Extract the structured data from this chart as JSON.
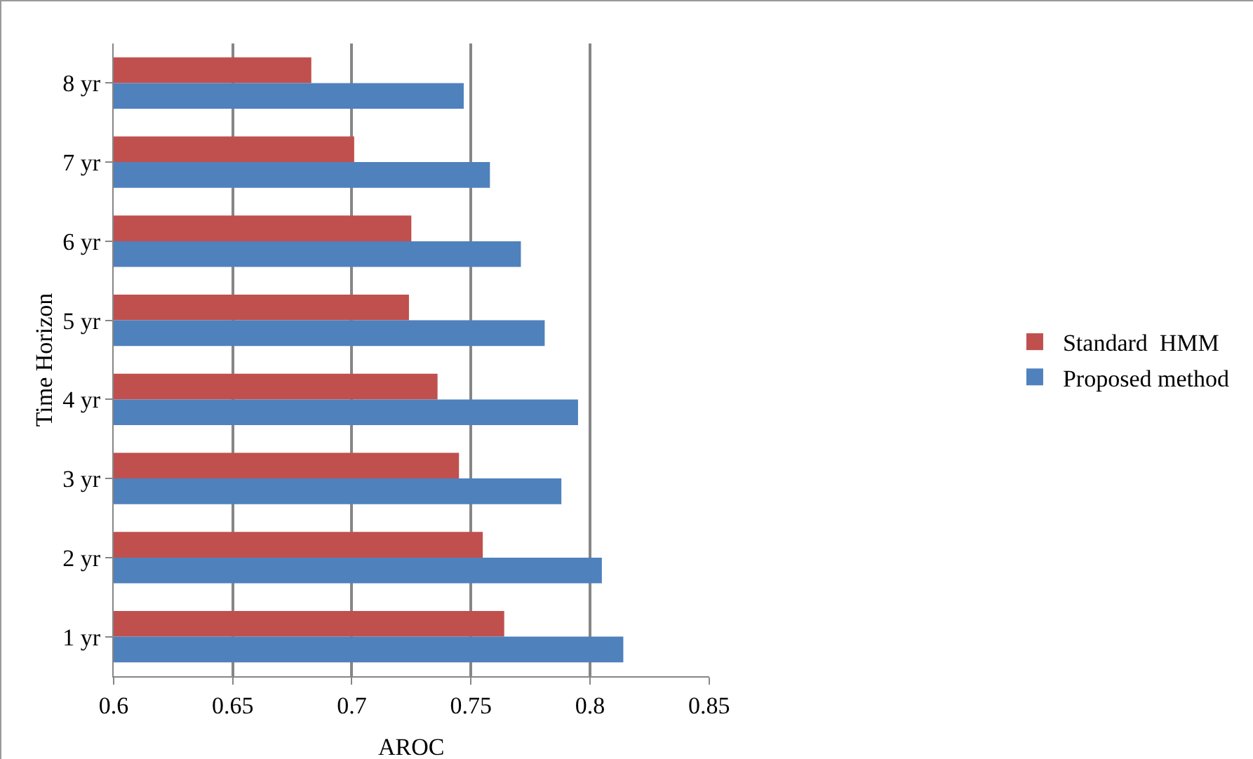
{
  "chart_data": {
    "type": "bar",
    "orientation": "horizontal",
    "xlabel": "AROC",
    "ylabel": "Time Horizon",
    "categories": [
      "8 yr",
      "7 yr",
      "6 yr",
      "5 yr",
      "4 yr",
      "3 yr",
      "2 yr",
      "1 yr"
    ],
    "series": [
      {
        "name": "Standard  HMM",
        "color": "#c0504d",
        "values": [
          0.683,
          0.701,
          0.725,
          0.724,
          0.736,
          0.745,
          0.755,
          0.764
        ]
      },
      {
        "name": "Proposed method",
        "color": "#4f81bd",
        "values": [
          0.747,
          0.758,
          0.771,
          0.781,
          0.795,
          0.788,
          0.805,
          0.814
        ]
      }
    ],
    "xlim": [
      0.6,
      0.85
    ],
    "xticks": [
      0.6,
      0.65,
      0.7,
      0.75,
      0.8,
      0.85
    ],
    "grid": "x",
    "legend": "right"
  }
}
